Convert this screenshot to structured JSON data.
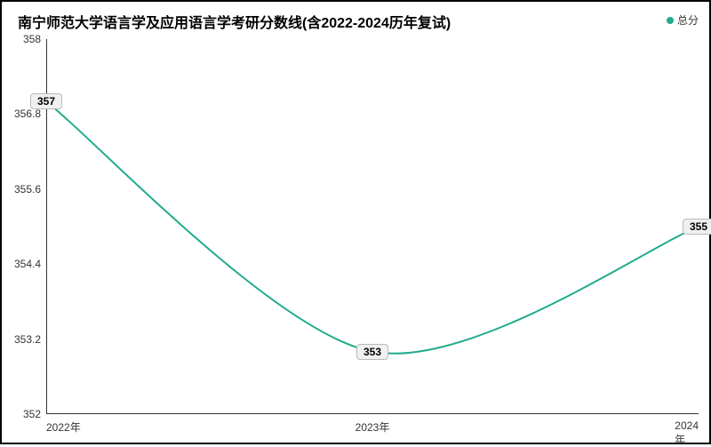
{
  "chart": {
    "type": "line",
    "title": "南宁师范大学语言学及应用语言学考研分数线(含2022-2024历年复试)",
    "title_fontsize": 16,
    "title_color": "#000000",
    "legend": {
      "label": "总分",
      "label_fontsize": 12,
      "marker_color": "#21ab8e",
      "position": "top-right"
    },
    "categories": [
      "2022年",
      "2023年",
      "2024年"
    ],
    "values": [
      357,
      353,
      355
    ],
    "data_labels": [
      "357",
      "353",
      "355"
    ],
    "line_color": "#21ab8e",
    "line_width": 2,
    "line_smooth": true,
    "ylim": [
      352,
      358
    ],
    "yticks": [
      352,
      353.2,
      354.4,
      355.6,
      356.8,
      358
    ],
    "ytick_labels": [
      "352",
      "353.2",
      "354.4",
      "355.6",
      "356.8",
      "358"
    ],
    "axis_color": "#333333",
    "tick_fontsize": 12,
    "tick_color": "#333333",
    "background_color": "#ffffff",
    "border_color": "#000000",
    "border_width": 2,
    "data_label_bg": "#f0f0f0",
    "data_label_border": "#bbbbbb",
    "data_label_color": "#000000"
  }
}
